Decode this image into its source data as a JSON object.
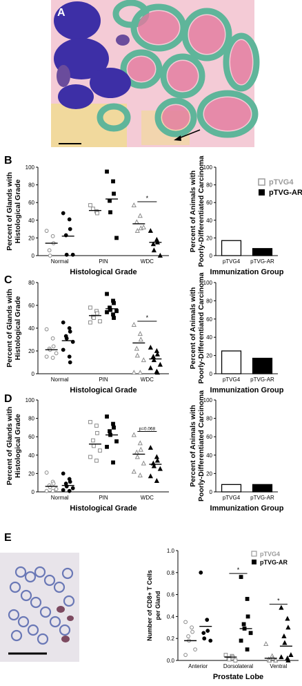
{
  "panel_letters": [
    "A",
    "B",
    "C",
    "D",
    "E"
  ],
  "legend": {
    "open": "pTVG4",
    "filled": "pTVG-AR"
  },
  "colors": {
    "panel_a_background": "#f4cbd6",
    "panel_a_gland": "#e37a9f",
    "panel_a_tumor": "#3d2fa6",
    "panel_a_stroma": "#5fb59a",
    "panel_a_fat": "#f0dc93",
    "open_marker": "#9a9a9a",
    "filled_marker": "#000000",
    "panel_e_background": "#e8e4ea",
    "panel_e_nuclei": "#6a78b6"
  },
  "chart_data": [
    {
      "id": "B-scatter",
      "type": "scatter",
      "ylabel": [
        "Percent of Glands with",
        "Histological Grade"
      ],
      "xlabel": "Histological Grade",
      "categories": [
        "Normal",
        "PIN",
        "WDC"
      ],
      "ylim": [
        0,
        100
      ],
      "yticks": [
        "0",
        "20",
        "40",
        "60",
        "80",
        "100"
      ],
      "series": [
        {
          "name": "pTVG4",
          "marker": "open",
          "points": [
            [
              0,
              [
                28,
                22,
                14,
                6,
                0
              ]
            ],
            [
              1,
              [
                57,
                50,
                48,
                53
              ]
            ],
            [
              2,
              [
                57,
                45,
                31,
                38,
                28,
                32
              ]
            ]
          ],
          "means": [
            14,
            51,
            36
          ]
        },
        {
          "name": "pTVG-AR",
          "marker": "filled",
          "points": [
            [
              0,
              [
                48,
                41,
                30,
                23,
                1,
                1
              ]
            ],
            [
              1,
              [
                95,
                84,
                70,
                62,
                49,
                20
              ]
            ],
            [
              2,
              [
                28,
                18,
                15,
                13,
                6,
                0
              ]
            ]
          ],
          "means": [
            22,
            64,
            15
          ]
        }
      ],
      "annotations": [
        {
          "text": "*",
          "between": "WDC"
        }
      ]
    },
    {
      "id": "B-bar",
      "type": "bar",
      "ylabel": [
        "Percent of Animals with",
        "Poorly-Differentiated Carcinoma"
      ],
      "xlabel": "Immunization Group",
      "categories": [
        "pTVG4",
        "pTVG-AR"
      ],
      "values": [
        17,
        8
      ],
      "ylim": [
        0,
        100
      ],
      "yticks": [
        "0",
        "20",
        "40",
        "60",
        "80",
        "100"
      ]
    },
    {
      "id": "C-scatter",
      "type": "scatter",
      "ylabel": [
        "Percent of Glands with",
        "Histological Grade"
      ],
      "xlabel": "Histological Grade",
      "categories": [
        "Normal",
        "PIN",
        "WDC"
      ],
      "ylim": [
        0,
        80
      ],
      "yticks": [
        "0",
        "20",
        "40",
        "60",
        "80"
      ],
      "series": [
        {
          "name": "pTVG4",
          "marker": "open",
          "points": [
            [
              0,
              [
                39,
                31,
                24,
                22,
                21,
                18,
                15,
                14
              ]
            ],
            [
              1,
              [
                58,
                55,
                53,
                50,
                49,
                46,
                45
              ]
            ],
            [
              2,
              [
                43,
                35,
                30,
                22,
                16,
                12,
                1,
                1
              ]
            ]
          ],
          "means": [
            21,
            51,
            27
          ]
        },
        {
          "name": "pTVG-AR",
          "marker": "filled",
          "points": [
            [
              0,
              [
                45,
                40,
                37,
                33,
                31,
                28,
                21,
                15,
                10
              ]
            ],
            [
              1,
              [
                70,
                64,
                62,
                58,
                56,
                55,
                54,
                52,
                49
              ]
            ],
            [
              2,
              [
                23,
                20,
                17,
                15,
                12,
                8,
                5,
                2,
                1
              ]
            ]
          ],
          "means": [
            29,
            57,
            13
          ]
        }
      ],
      "annotations": [
        {
          "text": "*",
          "between": "WDC"
        }
      ]
    },
    {
      "id": "C-bar",
      "type": "bar",
      "ylabel": [
        "Percent of Animals with",
        "Poorly-Differentiated Carcinoma"
      ],
      "xlabel": "Immunization Group",
      "categories": [
        "pTVG4",
        "pTVG-AR"
      ],
      "values": [
        25,
        17
      ],
      "ylim": [
        0,
        100
      ],
      "yticks": [
        "0",
        "20",
        "40",
        "60",
        "80",
        "100"
      ]
    },
    {
      "id": "D-scatter",
      "type": "scatter",
      "ylabel": [
        "Percent of Glands with",
        "Histological Grade"
      ],
      "xlabel": "Histological Grade",
      "categories": [
        "Normal",
        "PIN",
        "WDC"
      ],
      "ylim": [
        0,
        100
      ],
      "yticks": [
        "0",
        "20",
        "40",
        "60",
        "80",
        "100"
      ],
      "series": [
        {
          "name": "pTVG4",
          "marker": "open",
          "points": [
            [
              0,
              [
                21,
                11,
                9,
                7,
                5,
                3,
                1,
                1
              ]
            ],
            [
              1,
              [
                76,
                72,
                64,
                56,
                50,
                45,
                38,
                34
              ]
            ],
            [
              2,
              [
                62,
                53,
                46,
                43,
                38,
                31,
                22,
                18
              ]
            ]
          ],
          "means": [
            6,
            52,
            41
          ]
        },
        {
          "name": "pTVG-AR",
          "marker": "filled",
          "points": [
            [
              0,
              [
                20,
                14,
                11,
                9,
                6,
                4,
                2,
                1
              ]
            ],
            [
              1,
              [
                82,
                74,
                70,
                66,
                62,
                55,
                49,
                32
              ]
            ],
            [
              2,
              [
                48,
                38,
                34,
                31,
                28,
                25,
                17,
                12
              ]
            ]
          ],
          "means": [
            7,
            62,
            30
          ]
        }
      ],
      "annotations": [
        {
          "text": "p=0.068",
          "between": "WDC"
        }
      ]
    },
    {
      "id": "D-bar",
      "type": "bar",
      "ylabel": [
        "Percent of Animals with",
        "Poorly-Differentiated Carcinoma"
      ],
      "xlabel": "Immunization Group",
      "categories": [
        "pTVG4",
        "pTVG-AR"
      ],
      "values": [
        8,
        8
      ],
      "ylim": [
        0,
        100
      ],
      "yticks": [
        "0",
        "20",
        "40",
        "60",
        "80",
        "100"
      ]
    },
    {
      "id": "E-scatter",
      "type": "scatter",
      "ylabel": [
        "Number of CD8+ T Cells",
        "per Gland"
      ],
      "xlabel": "Prostate Lobe",
      "categories": [
        "Anterior",
        "Dorsolateral",
        "Ventral"
      ],
      "ylim": [
        0,
        1.0
      ],
      "yticks": [
        "0.0",
        "0.2",
        "0.4",
        "0.6",
        "0.8",
        "1.0"
      ],
      "series": [
        {
          "name": "pTVG4",
          "marker": "open",
          "points": [
            [
              0,
              [
                0.35,
                0.3,
                0.26,
                0.22,
                0.18,
                0.1,
                0.05
              ]
            ],
            [
              1,
              [
                0.05,
                0.04,
                0.03,
                0.02,
                0.01,
                0.0
              ]
            ],
            [
              2,
              [
                0.15,
                0.04,
                0.02,
                0.01,
                0.0,
                0.0
              ]
            ]
          ],
          "means": [
            0.18,
            0.03,
            0.02
          ]
        },
        {
          "name": "pTVG-AR",
          "marker": "filled",
          "points": [
            [
              0,
              [
                0.8,
                0.37,
                0.27,
                0.25,
                0.2,
                0.18
              ]
            ],
            [
              1,
              [
                0.76,
                0.56,
                0.4,
                0.33,
                0.29,
                0.25,
                0.18,
                0.1
              ]
            ],
            [
              2,
              [
                0.48,
                0.38,
                0.3,
                0.22,
                0.16,
                0.05,
                0.03,
                0.02,
                0.0
              ]
            ]
          ],
          "means": [
            0.31,
            0.29,
            0.13
          ]
        }
      ],
      "annotations": [
        {
          "text": "*",
          "between": "Dorsolateral"
        },
        {
          "text": "*",
          "between": "Ventral"
        }
      ]
    }
  ]
}
